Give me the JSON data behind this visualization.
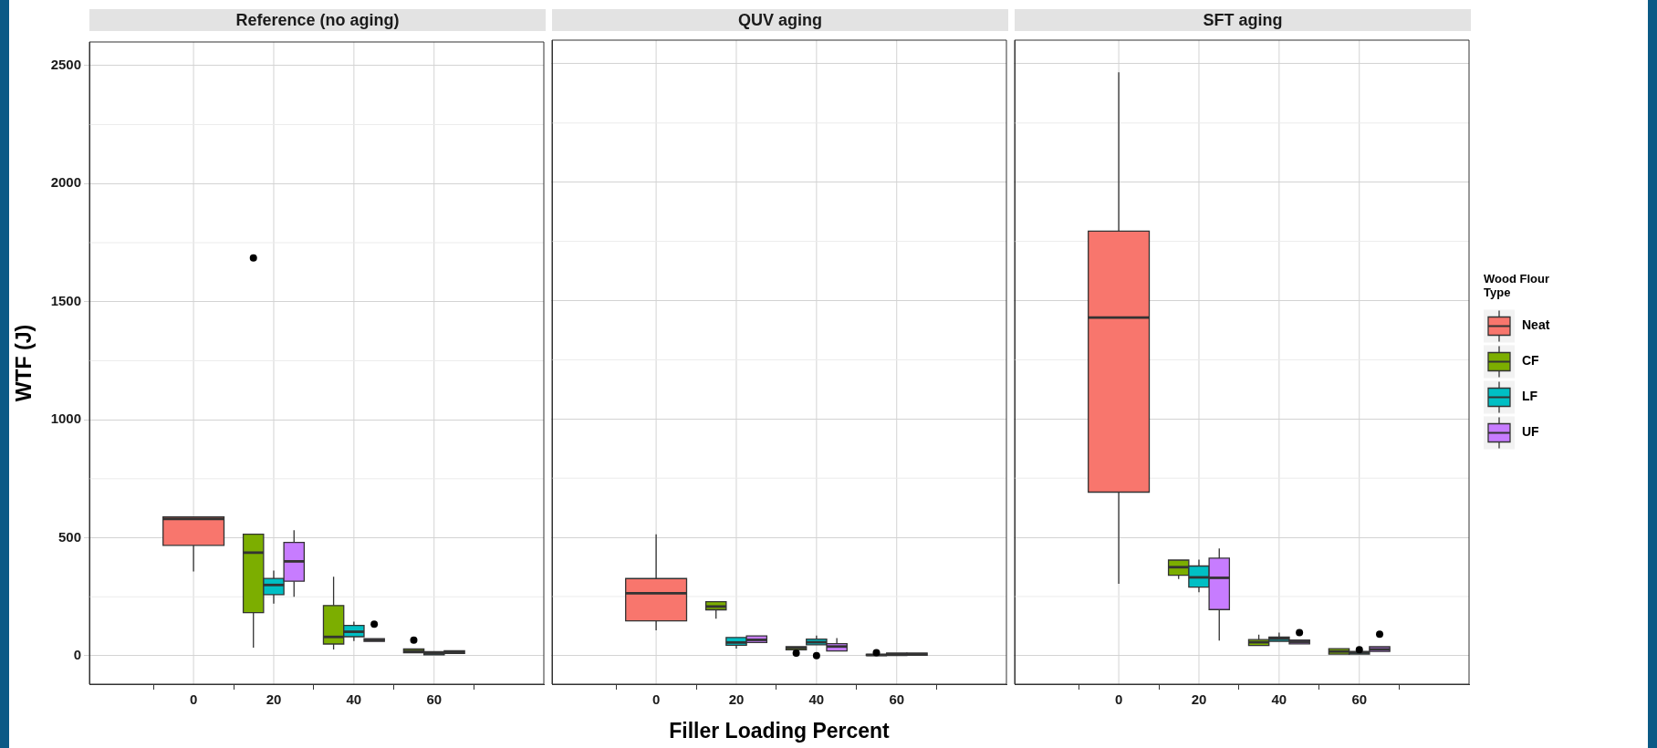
{
  "chart_data": [
    {
      "type": "box",
      "title": "Reference (no aging)",
      "ylabel": "WTF (J)",
      "categories": [
        "0",
        "20",
        "40",
        "60"
      ],
      "ylim": [
        -120,
        2600
      ],
      "yticks": [
        0,
        500,
        1000,
        1500,
        2000,
        2500
      ],
      "grid": true,
      "tick_labels": "xy",
      "series": [
        {
          "color": "#f8766d",
          "boxes": [
            {
              "low": 357,
              "q1": 468,
              "median": 580,
              "q3": 588,
              "high": 588
            },
            null,
            null,
            null
          ]
        },
        {
          "color": "#7cae00",
          "boxes": [
            null,
            {
              "low": 35,
              "q1": 183,
              "median": 437,
              "q3": 515,
              "high": 515,
              "outliers": [
                1685
              ]
            },
            {
              "low": 27,
              "q1": 50,
              "median": 80,
              "q3": 213,
              "high": 335
            },
            {
              "low": 13,
              "q1": 13,
              "median": 20,
              "q3": 29,
              "high": 29,
              "outliers": [
                66
              ]
            }
          ]
        },
        {
          "color": "#00bfc4",
          "boxes": [
            null,
            {
              "low": 221,
              "q1": 259,
              "median": 300,
              "q3": 328,
              "high": 361
            },
            {
              "low": 63,
              "q1": 81,
              "median": 102,
              "q3": 129,
              "high": 145
            },
            {
              "low": 4,
              "q1": 4,
              "median": 10,
              "q3": 18,
              "high": 18
            }
          ]
        },
        {
          "color": "#c77cff",
          "boxes": [
            null,
            {
              "low": 250,
              "q1": 316,
              "median": 400,
              "q3": 480,
              "high": 532
            },
            {
              "low": 61,
              "q1": 61,
              "median": 67,
              "q3": 73,
              "high": 73,
              "outliers": [
                134
              ]
            },
            {
              "low": 10,
              "q1": 10,
              "median": 16,
              "q3": 21,
              "high": 21
            }
          ]
        }
      ]
    },
    {
      "type": "box",
      "title": "QUV aging",
      "xlabel": "Filler Loading Percent",
      "categories": [
        "0",
        "20",
        "40",
        "60"
      ],
      "ylim": [
        -120,
        2600
      ],
      "yticks": [
        0,
        500,
        1000,
        1500,
        2000,
        2500
      ],
      "grid": true,
      "tick_labels": "x",
      "series": [
        {
          "color": "#f8766d",
          "boxes": [
            {
              "low": 107,
              "q1": 147,
              "median": 264,
              "q3": 326,
              "high": 513
            },
            null,
            null,
            null
          ]
        },
        {
          "color": "#7cae00",
          "boxes": [
            null,
            {
              "low": 156,
              "q1": 194,
              "median": 208,
              "q3": 228,
              "high": 228
            },
            {
              "low": 25,
              "q1": 25,
              "median": 33,
              "q3": 38,
              "high": 38,
              "outliers": [
                11
              ]
            },
            {
              "low": 1,
              "q1": 1,
              "median": 3,
              "q3": 6,
              "high": 6,
              "outliers": [
                13
              ]
            }
          ]
        },
        {
          "color": "#00bfc4",
          "boxes": [
            null,
            {
              "low": 30,
              "q1": 44,
              "median": 56,
              "q3": 77,
              "high": 77
            },
            {
              "low": 46,
              "q1": 46,
              "median": 57,
              "q3": 70,
              "high": 85,
              "outliers": [
                0
              ]
            },
            {
              "low": 1,
              "q1": 1,
              "median": 6,
              "q3": 11,
              "high": 11
            }
          ]
        },
        {
          "color": "#c77cff",
          "boxes": [
            null,
            {
              "low": 56,
              "q1": 56,
              "median": 67,
              "q3": 84,
              "high": 84
            },
            {
              "low": 20,
              "q1": 20,
              "median": 39,
              "q3": 51,
              "high": 75
            },
            {
              "low": 2,
              "q1": 2,
              "median": 6,
              "q3": 11,
              "high": 11
            }
          ]
        }
      ]
    },
    {
      "type": "box",
      "title": "SFT aging",
      "legend_title": "Wood Flour Type",
      "legend": "right",
      "categories": [
        "0",
        "20",
        "40",
        "60"
      ],
      "ylim": [
        -120,
        2600
      ],
      "yticks": [
        0,
        500,
        1000,
        1500,
        2000,
        2500
      ],
      "grid": true,
      "tick_labels": "x",
      "series": [
        {
          "name": "Neat",
          "color": "#f8766d",
          "boxes": [
            {
              "low": 304,
              "q1": 691,
              "median": 1428,
              "q3": 1793,
              "high": 2464
            },
            null,
            null,
            null
          ]
        },
        {
          "name": "CF",
          "color": "#7cae00",
          "boxes": [
            null,
            {
              "low": 324,
              "q1": 340,
              "median": 374,
              "q3": 404,
              "high": 404
            },
            {
              "low": 43,
              "q1": 43,
              "median": 57,
              "q3": 68,
              "high": 89
            },
            {
              "low": 7,
              "q1": 7,
              "median": 18,
              "q3": 30,
              "high": 30
            }
          ]
        },
        {
          "name": "LF",
          "color": "#00bfc4",
          "boxes": [
            null,
            {
              "low": 268,
              "q1": 290,
              "median": 331,
              "q3": 379,
              "high": 406
            },
            {
              "low": 61,
              "q1": 61,
              "median": 72,
              "q3": 79,
              "high": 98
            },
            {
              "low": 7,
              "q1": 7,
              "median": 13,
              "q3": 18,
              "high": 18,
              "outliers": [
                25
              ]
            }
          ]
        },
        {
          "name": "UF",
          "color": "#c77cff",
          "boxes": [
            null,
            {
              "low": 64,
              "q1": 195,
              "median": 329,
              "q3": 412,
              "high": 453
            },
            {
              "low": 50,
              "q1": 50,
              "median": 59,
              "q3": 66,
              "high": 66,
              "outliers": [
                98
              ]
            },
            {
              "low": 18,
              "q1": 18,
              "median": 27,
              "q3": 38,
              "high": 38,
              "outliers": [
                91
              ]
            }
          ]
        }
      ]
    }
  ]
}
